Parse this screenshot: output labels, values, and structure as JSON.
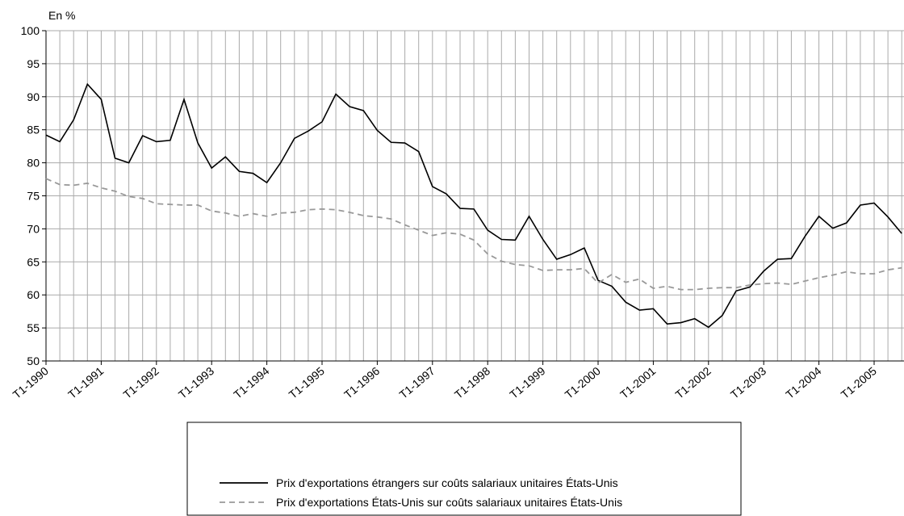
{
  "chart_data": {
    "type": "line",
    "y_axis_label": "En %",
    "categories": [
      "T1-1990",
      null,
      null,
      null,
      "T1-1991",
      null,
      null,
      null,
      "T1-1992",
      null,
      null,
      null,
      "T1-1993",
      null,
      null,
      null,
      "T1-1994",
      null,
      null,
      null,
      "T1-1995",
      null,
      null,
      null,
      "T1-1996",
      null,
      null,
      null,
      "T1-1997",
      null,
      null,
      null,
      "T1-1998",
      null,
      null,
      null,
      "T1-1999",
      null,
      null,
      null,
      "T1-2000",
      null,
      null,
      null,
      "T1-2001",
      null,
      null,
      null,
      "T1-2002",
      null,
      null,
      null,
      "T1-2003",
      null,
      null,
      null,
      "T1-2004",
      null,
      null,
      null,
      "T1-2005",
      null,
      null
    ],
    "series": [
      {
        "name": "Prix d'exportations étrangers sur coûts salariaux unitaires États-Unis",
        "color": "#000000",
        "dash": "solid",
        "values": [
          84.2,
          83.2,
          86.5,
          91.9,
          89.6,
          80.7,
          80.0,
          84.1,
          83.2,
          83.4,
          89.6,
          83.0,
          79.2,
          80.9,
          78.7,
          78.4,
          77.0,
          80.0,
          83.7,
          84.8,
          86.2,
          90.4,
          88.5,
          87.9,
          84.9,
          83.1,
          83.0,
          81.7,
          76.4,
          75.3,
          73.1,
          73.0,
          69.8,
          68.4,
          68.3,
          71.9,
          68.4,
          65.4,
          66.1,
          67.1,
          62.2,
          61.3,
          58.9,
          57.7,
          57.9,
          55.6,
          55.8,
          56.4,
          55.1,
          56.9,
          60.6,
          61.2,
          63.6,
          65.4,
          65.5,
          68.9,
          71.9,
          70.1,
          70.9,
          73.6,
          73.9,
          71.8,
          69.3
        ]
      },
      {
        "name": "Prix d'exportations États-Unis sur coûts salariaux unitaires États-Unis",
        "color": "#999999",
        "dash": "dashed",
        "values": [
          77.6,
          76.7,
          76.6,
          76.9,
          76.2,
          75.7,
          74.9,
          74.6,
          73.8,
          73.7,
          73.6,
          73.6,
          72.7,
          72.4,
          71.9,
          72.3,
          71.9,
          72.4,
          72.5,
          72.9,
          73.0,
          72.9,
          72.5,
          72.0,
          71.8,
          71.5,
          70.6,
          69.8,
          69.0,
          69.4,
          69.2,
          68.3,
          66.2,
          65.1,
          64.6,
          64.4,
          63.7,
          63.8,
          63.8,
          64.0,
          61.8,
          63.1,
          61.9,
          62.4,
          61.0,
          61.3,
          60.8,
          60.8,
          61.0,
          61.1,
          61.1,
          61.5,
          61.7,
          61.8,
          61.6,
          62.1,
          62.6,
          63.0,
          63.5,
          63.2,
          63.2,
          63.8,
          64.1
        ]
      }
    ],
    "ylim": [
      50,
      100
    ],
    "yticks": [
      50,
      55,
      60,
      65,
      70,
      75,
      80,
      85,
      90,
      95,
      100
    ],
    "grid": true
  }
}
